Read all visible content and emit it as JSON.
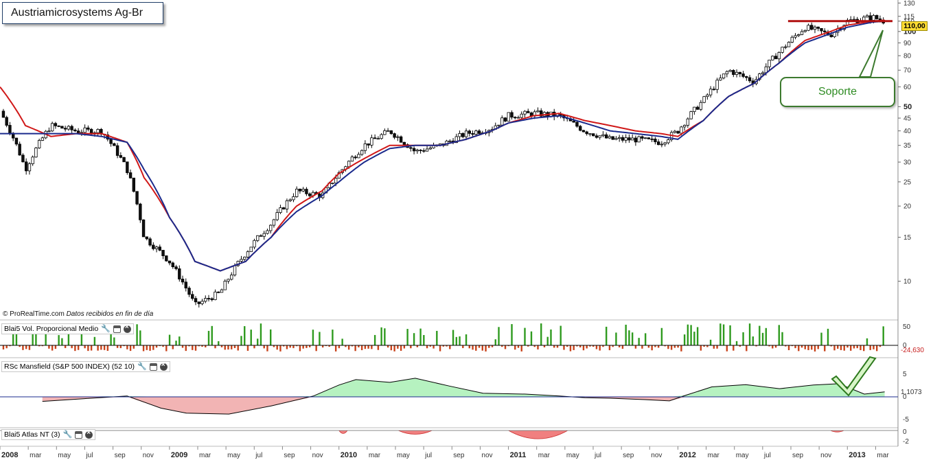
{
  "title": "Austriamicrosystems Ag-Br",
  "credit": {
    "source": "© ProRealTime.com",
    "note": "Datos recibidos en fin de día"
  },
  "callout": {
    "label": "Soporte"
  },
  "price_tag": "110,00",
  "colors": {
    "price_candles": "#000000",
    "ma_red": "#d01818",
    "ma_blue": "#1a2a8c",
    "support_line": "#b01010",
    "vol_up": "#2e9a1e",
    "vol_down": "#c8421a",
    "rsc_pos": "#b6f2c0",
    "rsc_neg": "#f2b4b4",
    "atlas": "#f08080",
    "callout": "#3c7a2e"
  },
  "panels": {
    "volume": {
      "title": "Blai5 Vol. Proporcional Medio",
      "last_value": "-24,630",
      "y_ticks": [
        "50",
        "0"
      ]
    },
    "rsc": {
      "title": "RSc Mansfield (S&P 500 INDEX) (52 10)",
      "last_value": "1,1073",
      "y_ticks": [
        "5",
        "0",
        "-5"
      ]
    },
    "atlas": {
      "title": "Blai5 Atlas NT (3)",
      "y_ticks": [
        "0",
        "-2"
      ]
    }
  },
  "chart_data": {
    "type": "line",
    "title": "Austriamicrosystems Ag-Br",
    "scale": "log",
    "ylim": [
      7,
      132
    ],
    "y_ticks": [
      "130",
      "115",
      "110",
      "100",
      "90",
      "80",
      "70",
      "60",
      "50",
      "45",
      "40",
      "35",
      "30",
      "25",
      "20",
      "15",
      "10"
    ],
    "x_ticks": [
      "2008",
      "mar",
      "may",
      "jul",
      "sep",
      "nov",
      "2009",
      "mar",
      "may",
      "jul",
      "sep",
      "nov",
      "2010",
      "mar",
      "may",
      "jul",
      "sep",
      "nov",
      "2011",
      "mar",
      "may",
      "jul",
      "sep",
      "nov",
      "2012",
      "mar",
      "may",
      "jul",
      "sep",
      "nov",
      "2013",
      "mar"
    ],
    "x": [
      2008.0,
      2008.15,
      2008.3,
      2008.45,
      2008.6,
      2008.75,
      2008.85,
      2009.0,
      2009.15,
      2009.3,
      2009.45,
      2009.6,
      2009.75,
      2009.9,
      2010.0,
      2010.15,
      2010.3,
      2010.45,
      2010.6,
      2010.75,
      2010.9,
      2011.0,
      2011.15,
      2011.3,
      2011.45,
      2011.6,
      2011.75,
      2011.9,
      2012.0,
      2012.15,
      2012.3,
      2012.45,
      2012.6,
      2012.75,
      2012.9,
      2013.0,
      2013.15,
      2013.22
    ],
    "series": [
      {
        "values": [
          48,
          28,
          42,
          40,
          40,
          28,
          15,
          12,
          8,
          9,
          13,
          17,
          23,
          22,
          27,
          35,
          40,
          33,
          35,
          39,
          41,
          46,
          47,
          46,
          40,
          37,
          37,
          36,
          40,
          53,
          70,
          63,
          83,
          104,
          97,
          110,
          114,
          110
        ]
      }
    ],
    "ma_red": {
      "values": [
        60,
        42,
        38,
        39,
        39,
        36,
        26,
        18,
        12,
        11,
        12,
        15,
        20,
        23,
        27,
        31,
        35,
        35,
        35,
        37,
        40,
        43,
        46,
        47,
        44,
        42,
        40,
        39,
        38,
        44,
        55,
        62,
        75,
        92,
        100,
        106,
        110,
        111
      ]
    },
    "ma_blue": {
      "values": [
        39,
        39,
        39,
        39,
        38,
        36,
        28,
        18,
        12,
        11,
        12,
        15,
        19,
        22,
        25,
        30,
        34,
        35,
        35,
        37,
        40,
        43,
        45,
        46,
        43,
        40,
        39,
        38,
        37,
        44,
        55,
        62,
        75,
        90,
        98,
        104,
        109,
        110
      ]
    },
    "support_level": 110
  }
}
